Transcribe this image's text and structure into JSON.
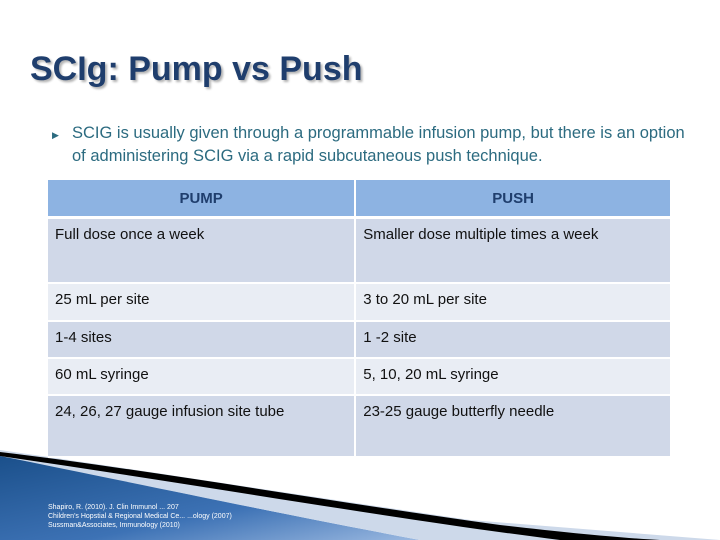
{
  "title": "SCIg: Pump vs Push",
  "bullet": {
    "icon": "triangle-bullet-icon",
    "text": "SCIG is usually given through a programmable infusion pump, but there is an option of administering SCIG via a rapid subcutaneous push technique."
  },
  "table": {
    "headers": [
      "PUMP",
      "PUSH"
    ],
    "rows": [
      [
        "Full dose once a week",
        "Smaller dose multiple times a week"
      ],
      [
        "25 mL per site",
        "3 to 20 mL per site"
      ],
      [
        "1-4 sites",
        "1 -2 site"
      ],
      [
        "60 mL syringe",
        "5, 10, 20 mL syringe"
      ],
      [
        "24, 26, 27 gauge infusion site tube",
        "23-25 gauge butterfly needle"
      ]
    ]
  },
  "references": [
    "Shapiro, R. (2010). J. Clin Immunol ... 207",
    "Children's Hopstial & Regional Medical Ce... ...ology (2007)",
    "Sussman&Associates, Immunology (2010)"
  ],
  "colors": {
    "title": "#1f3e6d",
    "header": "#8db3e2",
    "row_dark": "#d0d8e8",
    "row_light": "#e9edf4",
    "bullet_text": "#2c6b80"
  }
}
